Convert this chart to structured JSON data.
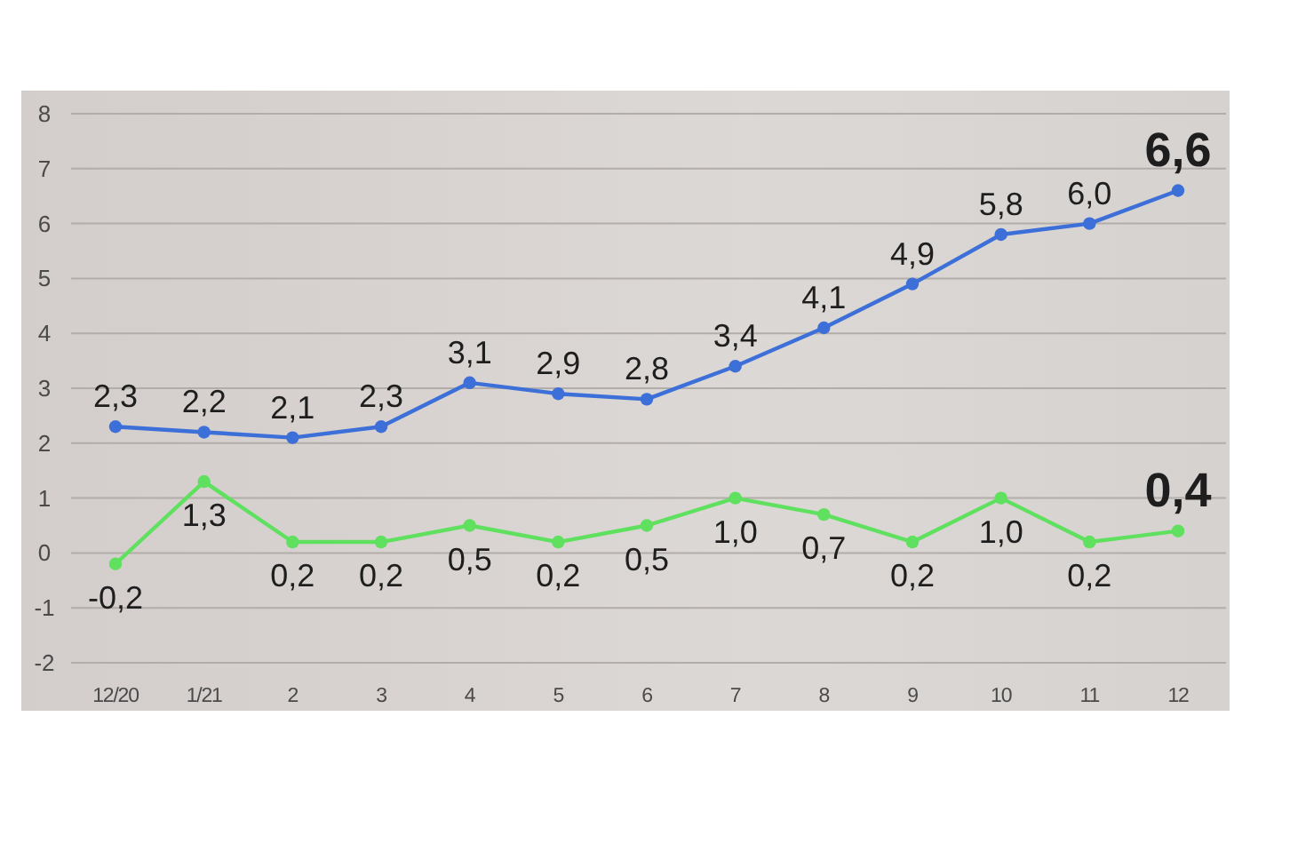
{
  "chart_data": {
    "type": "line",
    "categories": [
      "12/20",
      "1/21",
      "2",
      "3",
      "4",
      "5",
      "6",
      "7",
      "8",
      "9",
      "10",
      "11",
      "12"
    ],
    "series": [
      {
        "color": "#3d6fd8",
        "values": [
          2.3,
          2.2,
          2.1,
          2.3,
          3.1,
          2.9,
          2.8,
          3.4,
          4.1,
          4.9,
          5.8,
          6.0,
          6.6
        ],
        "value_labels": [
          "2,3",
          "2,2",
          "2,1",
          "2,3",
          "3,1",
          "2,9",
          "2,8",
          "3,4",
          "4,1",
          "4,9",
          "5,8",
          "6,0",
          "6,6"
        ]
      },
      {
        "color": "#5fe05f",
        "values": [
          -0.2,
          1.3,
          0.2,
          0.2,
          0.5,
          0.2,
          0.5,
          1.0,
          0.7,
          0.2,
          1.0,
          0.2,
          0.4
        ],
        "value_labels": [
          "-0,2",
          "1,3",
          "0,2",
          "0,2",
          "0,5",
          "0,2",
          "0,5",
          "1,0",
          "0,7",
          "0,2",
          "1,0",
          "0,2",
          "0,4"
        ]
      }
    ],
    "ylim": [
      -2,
      8
    ],
    "yticks": [
      -2,
      -1,
      0,
      1,
      2,
      3,
      4,
      5,
      6,
      7,
      8
    ],
    "grid": "y",
    "marker": "circle"
  }
}
